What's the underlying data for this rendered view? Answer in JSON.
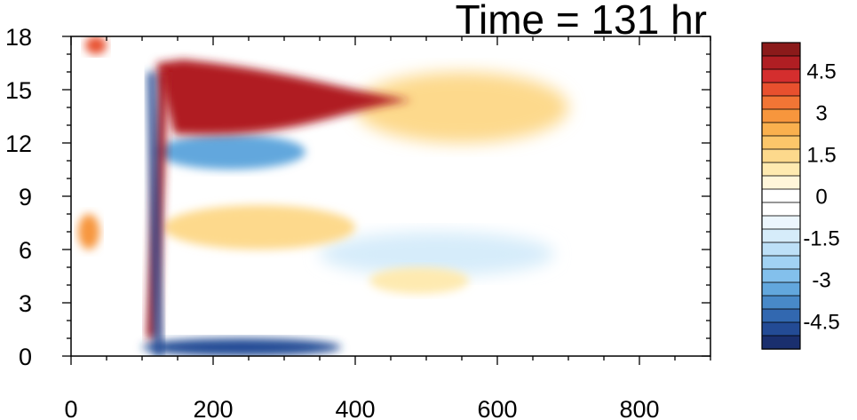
{
  "chart_data": {
    "type": "heatmap",
    "title": "Time = 131 hr",
    "xlabel": "",
    "ylabel": "",
    "xlim": [
      0,
      900
    ],
    "ylim": [
      0,
      18
    ],
    "x_ticks": [
      0,
      200,
      400,
      600,
      800
    ],
    "y_ticks": [
      0,
      3,
      6,
      9,
      12,
      15,
      18
    ],
    "colorbar": {
      "min": -5.5,
      "max": 5.5,
      "step": 0.5,
      "labels": [
        "4.5",
        "3",
        "1.5",
        "0",
        "-1.5",
        "-3",
        "-4.5"
      ],
      "label_values": [
        4.5,
        3,
        1.5,
        0,
        -1.5,
        -3,
        -4.5
      ],
      "colors": [
        "#8b1a1a",
        "#b01e23",
        "#d42e2e",
        "#e8502e",
        "#f27535",
        "#f7963d",
        "#fab04e",
        "#fcc66a",
        "#fdd98c",
        "#feeab0",
        "#fff6da",
        "#ffffff",
        "#ffffff",
        "#ecf6fd",
        "#d6ecfa",
        "#bde0f7",
        "#a1d2f3",
        "#83c0ec",
        "#62a7dd",
        "#4889c8",
        "#3268b0",
        "#234b95",
        "#1a2f6e"
      ]
    },
    "features": [
      {
        "kind": "updraft_band",
        "x": [
          100,
          130
        ],
        "z": [
          1,
          16
        ],
        "value": 5
      },
      {
        "kind": "downdraft_band",
        "x": [
          110,
          125
        ],
        "z": [
          0,
          16
        ],
        "value": -5
      },
      {
        "kind": "outflow_positive",
        "x": [
          120,
          480
        ],
        "z": [
          12.5,
          16.5
        ],
        "value": 5
      },
      {
        "kind": "outflow_weak_positive",
        "x": [
          400,
          700
        ],
        "z": [
          12,
          16
        ],
        "value": 1.5
      },
      {
        "kind": "negative_below_outflow",
        "x": [
          120,
          330
        ],
        "z": [
          10.5,
          12.5
        ],
        "value": -3.5
      },
      {
        "kind": "surface_negative",
        "x": [
          100,
          380
        ],
        "z": [
          0,
          1
        ],
        "value": -5
      },
      {
        "kind": "mid_positive",
        "x": [
          130,
          400
        ],
        "z": [
          6,
          8.5
        ],
        "value": 1.5
      },
      {
        "kind": "mid_negative",
        "x": [
          350,
          680
        ],
        "z": [
          4.5,
          7
        ],
        "value": -1.2
      },
      {
        "kind": "low_positive",
        "x": [
          420,
          560
        ],
        "z": [
          3.5,
          5
        ],
        "value": 1
      },
      {
        "kind": "left_positive",
        "x": [
          10,
          40
        ],
        "z": [
          6,
          8
        ],
        "value": 3
      },
      {
        "kind": "top_left_positive",
        "x": [
          20,
          50
        ],
        "z": [
          17,
          18
        ],
        "value": 4
      }
    ]
  }
}
